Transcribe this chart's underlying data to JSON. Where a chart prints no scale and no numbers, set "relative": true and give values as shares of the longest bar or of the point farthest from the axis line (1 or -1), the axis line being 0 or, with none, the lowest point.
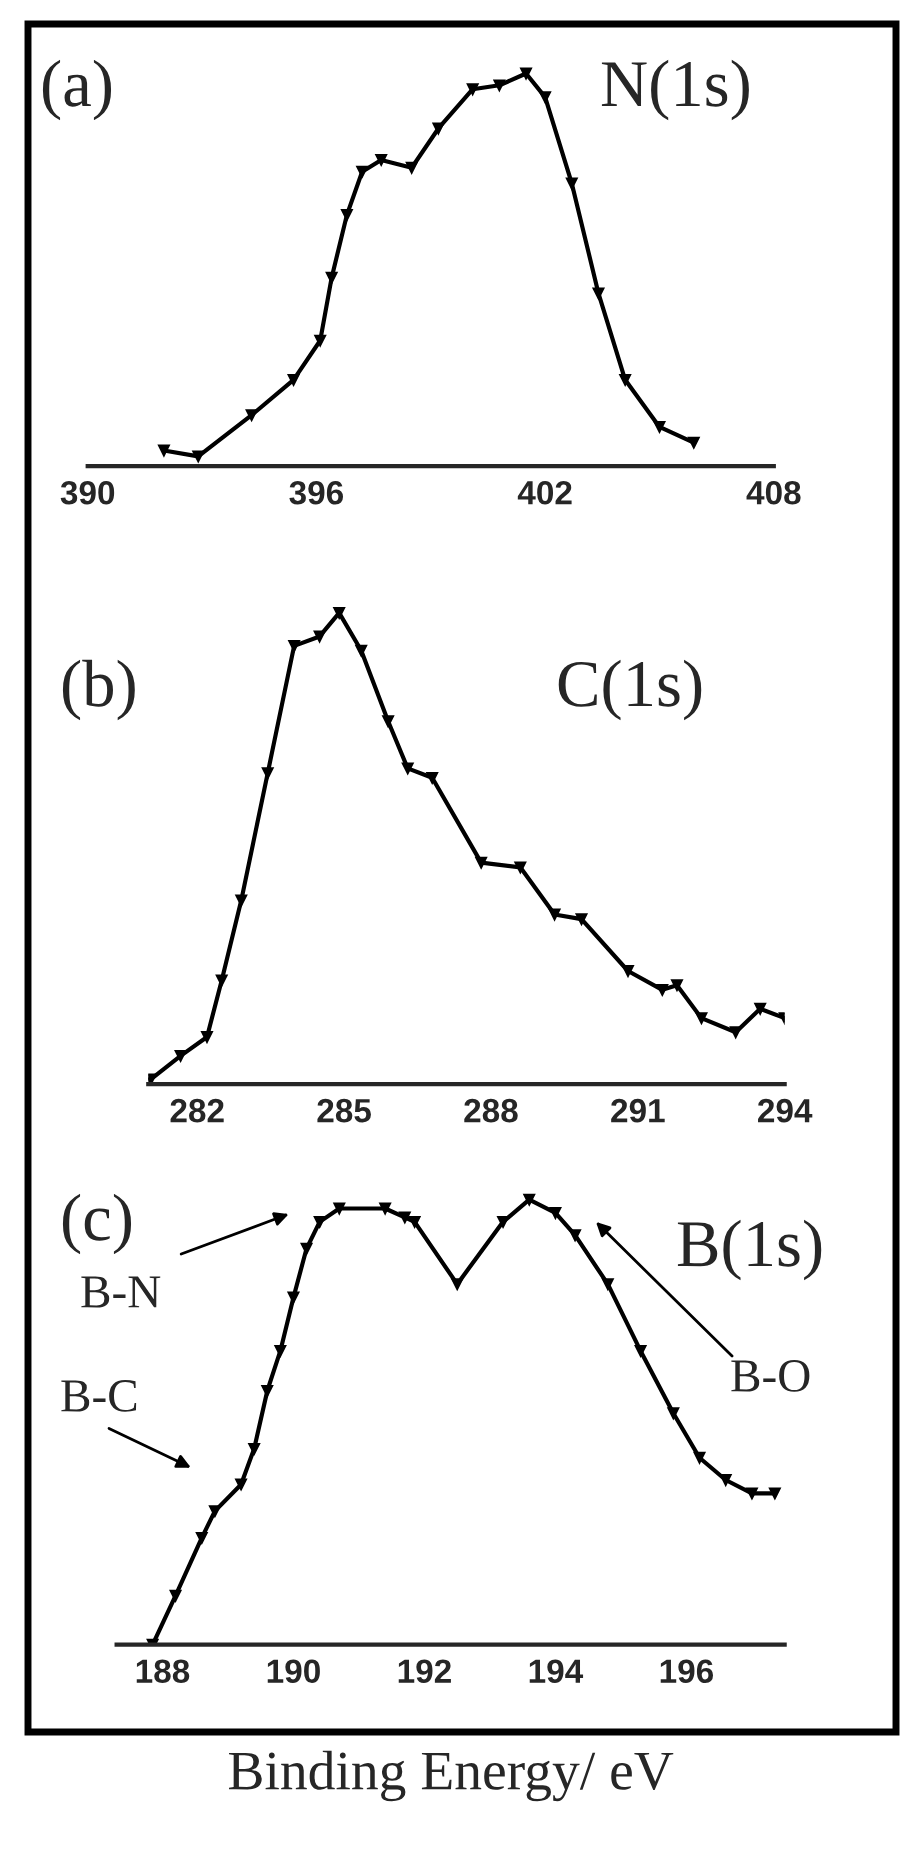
{
  "chart_data": [
    {
      "type": "line",
      "relative": true,
      "color": "#000000",
      "marker": "triangle",
      "line_style": "solid",
      "x": [
        392.0,
        392.9,
        394.3,
        395.4,
        396.1,
        396.4,
        396.8,
        397.2,
        397.7,
        398.5,
        399.2,
        400.1,
        400.8,
        401.5,
        402.0,
        402.7,
        403.4,
        404.1,
        405.0,
        405.9
      ],
      "values": [
        0.04,
        0.025,
        0.13,
        0.22,
        0.32,
        0.48,
        0.64,
        0.75,
        0.78,
        0.76,
        0.86,
        0.96,
        0.97,
        1.0,
        0.94,
        0.72,
        0.44,
        0.22,
        0.1,
        0.06
      ],
      "xlim": [
        390,
        408
      ],
      "xticks": [
        390,
        396,
        402,
        408
      ],
      "annotations": [
        "(a)",
        "N(1s)"
      ]
    },
    {
      "type": "line",
      "relative": true,
      "color": "#000000",
      "marker": "triangle",
      "line_style": "solid",
      "x": [
        281.05,
        281.66,
        282.2,
        282.5,
        282.9,
        283.44,
        283.98,
        284.5,
        284.9,
        285.35,
        285.9,
        286.3,
        286.8,
        287.8,
        288.6,
        289.3,
        289.85,
        290.8,
        291.5,
        291.8,
        292.3,
        293.0,
        293.5,
        294.0
      ],
      "values": [
        0.01,
        0.06,
        0.1,
        0.22,
        0.39,
        0.66,
        0.93,
        0.95,
        1.0,
        0.92,
        0.77,
        0.67,
        0.65,
        0.47,
        0.46,
        0.36,
        0.35,
        0.24,
        0.2,
        0.21,
        0.14,
        0.11,
        0.16,
        0.14
      ],
      "xlim": [
        281,
        294
      ],
      "xticks": [
        282,
        285,
        288,
        291,
        294
      ],
      "annotations": [
        "(b)",
        "C(1s)"
      ]
    },
    {
      "type": "line",
      "relative": true,
      "color": "#000000",
      "marker": "triangle",
      "line_style": "solid",
      "x": [
        187.85,
        188.2,
        188.6,
        188.8,
        189.2,
        189.4,
        189.6,
        189.8,
        190.0,
        190.2,
        190.4,
        190.7,
        191.4,
        191.7,
        191.85,
        192.5,
        193.2,
        193.6,
        194.0,
        194.3,
        194.8,
        195.3,
        195.8,
        196.2,
        196.6,
        197.0,
        197.35
      ],
      "values": [
        0.0,
        0.11,
        0.24,
        0.3,
        0.36,
        0.44,
        0.57,
        0.66,
        0.78,
        0.89,
        0.95,
        0.98,
        0.98,
        0.96,
        0.95,
        0.81,
        0.95,
        1.0,
        0.97,
        0.92,
        0.81,
        0.66,
        0.52,
        0.42,
        0.37,
        0.34,
        0.34
      ],
      "xlim": [
        187.3,
        197.5
      ],
      "xticks": [
        188,
        190,
        192,
        194,
        196
      ],
      "xlabel": "Binding Energy/ eV",
      "annotations": [
        "(c)",
        "B(1s)",
        "B-N",
        "B-C",
        "B-O"
      ]
    }
  ]
}
